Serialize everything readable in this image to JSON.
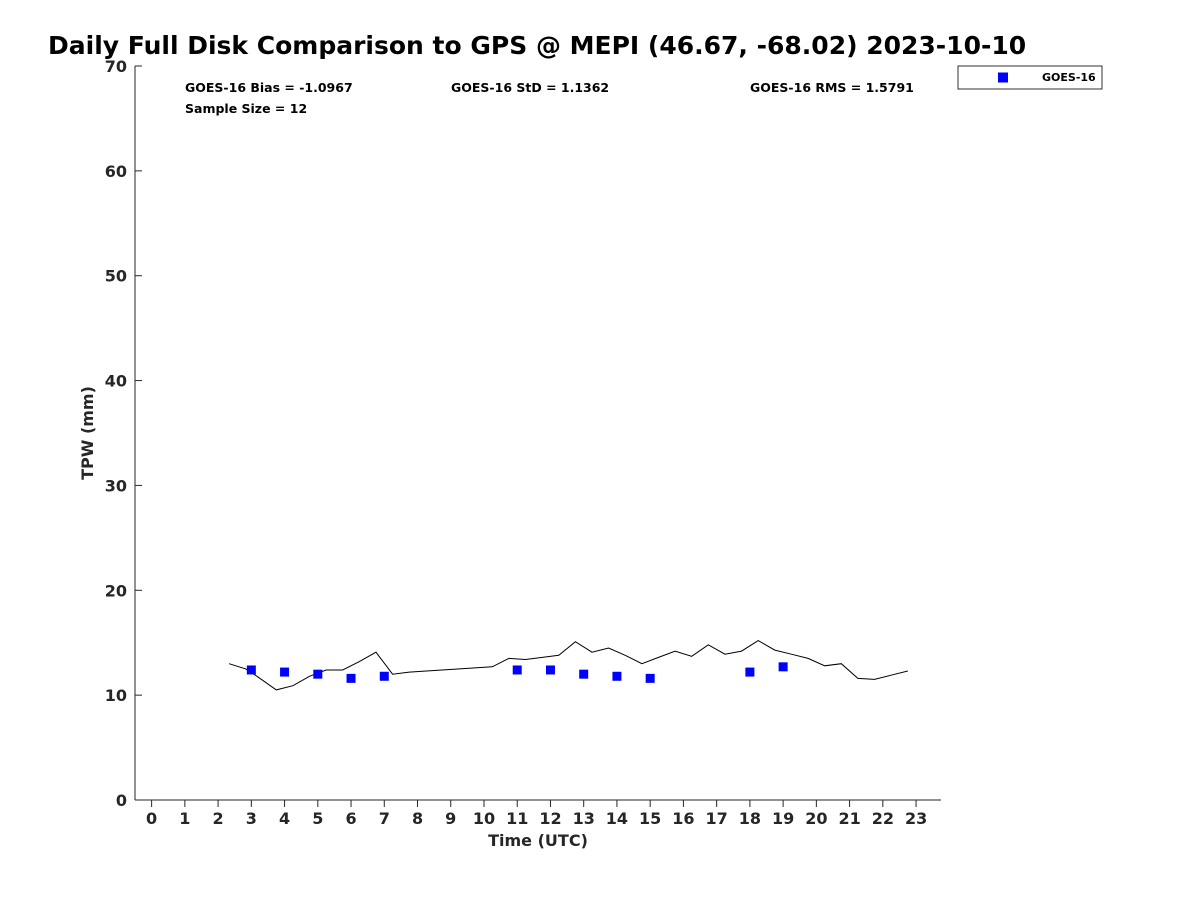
{
  "chart_data": {
    "type": "scatter",
    "title": "Daily Full Disk Comparison to GPS @ MEPI (46.67, -68.02) 2023-10-10",
    "xlabel": "Time (UTC)",
    "ylabel": "TPW (mm)",
    "xlim": [
      -0.5,
      23.75
    ],
    "ylim": [
      0,
      70
    ],
    "xticks": [
      0,
      1,
      2,
      3,
      4,
      5,
      6,
      7,
      8,
      9,
      10,
      11,
      12,
      13,
      14,
      15,
      16,
      17,
      18,
      19,
      20,
      21,
      22,
      23
    ],
    "yticks": [
      0,
      10,
      20,
      30,
      40,
      50,
      60,
      70
    ],
    "grid": false,
    "legend_position": "top-right (outside)",
    "stats": {
      "bias": "GOES-16 Bias = -1.0967",
      "std": "GOES-16 StD = 1.1362",
      "rms": "GOES-16 RMS = 1.5791",
      "sample_size": "Sample Size = 12"
    },
    "series": [
      {
        "name": "GOES-16",
        "kind": "scatter",
        "marker": "square",
        "color": "#0000ff",
        "x": [
          3,
          4,
          5,
          6,
          7,
          11,
          12,
          13,
          14,
          15,
          18,
          19
        ],
        "y": [
          12.4,
          12.2,
          12.0,
          11.6,
          11.8,
          12.4,
          12.4,
          12.0,
          11.8,
          11.6,
          12.2,
          12.7
        ]
      },
      {
        "kind": "line",
        "color": "#000000",
        "x": [
          2.33,
          2.83,
          3.17,
          3.75,
          4.25,
          4.75,
          5.25,
          5.75,
          6.25,
          6.75,
          7.25,
          7.75,
          10.25,
          10.75,
          11.25,
          11.75,
          12.25,
          12.75,
          13.25,
          13.75,
          14.25,
          14.75,
          15.25,
          15.75,
          16.25,
          16.75,
          17.25,
          17.75,
          18.25,
          18.75,
          19.25,
          19.75,
          20.25,
          20.75,
          21.25,
          21.75,
          22.25,
          22.75
        ],
        "y": [
          13.0,
          12.5,
          11.8,
          10.5,
          10.9,
          11.8,
          12.4,
          12.4,
          13.2,
          14.1,
          12.0,
          12.2,
          12.7,
          13.5,
          13.4,
          13.6,
          13.8,
          15.1,
          14.1,
          14.5,
          13.8,
          13.0,
          13.6,
          14.2,
          13.7,
          14.8,
          13.9,
          14.2,
          15.2,
          14.3,
          13.9,
          13.5,
          12.8,
          13.0,
          11.6,
          11.5,
          11.9,
          12.3
        ]
      }
    ]
  },
  "legend": {
    "label": "GOES-16",
    "marker_color": "#0000ff"
  }
}
